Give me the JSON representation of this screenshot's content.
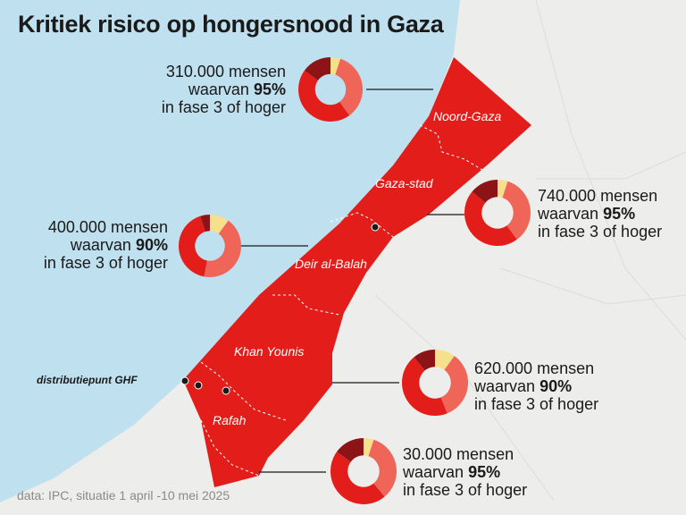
{
  "title": "Kritiek risico op hongersnood in Gaza",
  "colors": {
    "sea": "#bfe0ef",
    "land": "#ededeb",
    "strip": "#e31d1a",
    "phase_yellow": "#f7e08c",
    "phase_salmon": "#ef6558",
    "phase_red": "#e31d1a",
    "phase_dark": "#8c1416"
  },
  "regions": [
    {
      "name": "Noord-Gaza",
      "people": "310.000 mensen",
      "prefix": "waarvan",
      "pct": "95%",
      "suffix": "in fase 3 of hoger",
      "slices": [
        5,
        35,
        45,
        15
      ]
    },
    {
      "name": "Gaza-stad",
      "people": "740.000 mensen",
      "prefix": "waarvan",
      "pct": "95%",
      "suffix": "in fase 3 of hoger",
      "slices": [
        5,
        35,
        46,
        14
      ]
    },
    {
      "name": "Deir al-Balah",
      "people": "400.000 mensen",
      "prefix": "waarvan",
      "pct": "90%",
      "suffix": "in fase 3 of hoger",
      "slices": [
        10,
        43,
        42,
        5
      ]
    },
    {
      "name": "Khan Younis",
      "people": "620.000 mensen",
      "prefix": "waarvan",
      "pct": "90%",
      "suffix": "in fase 3 of hoger",
      "slices": [
        10,
        34,
        45,
        11
      ]
    },
    {
      "name": "Rafah",
      "people": "30.000 mensen",
      "prefix": "waarvan",
      "pct": "95%",
      "suffix": "in fase 3 of hoger",
      "slices": [
        5,
        34,
        46,
        15
      ]
    }
  ],
  "ghf_label": "distributiepunt GHF",
  "source": "data: IPC, situatie 1 april -10 mei 2025"
}
